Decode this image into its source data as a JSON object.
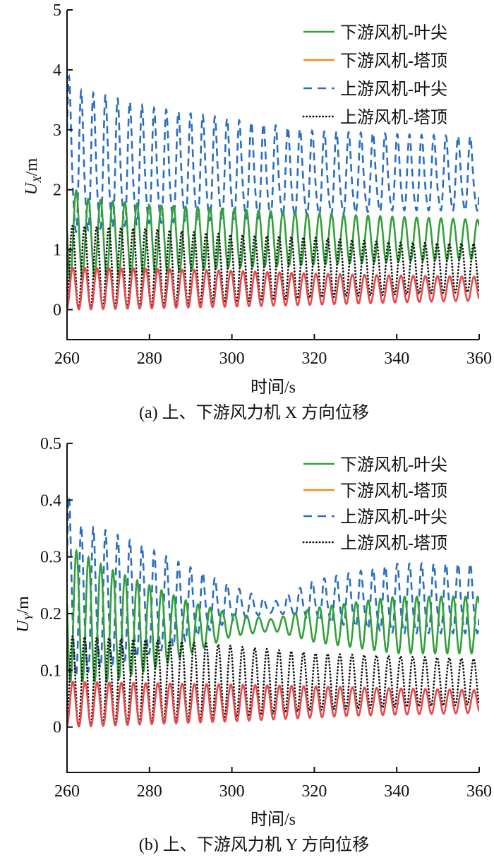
{
  "colors": {
    "green": "#33a03a",
    "red": "#e84a4c",
    "orange": "#f28a1e",
    "blue": "#2b6fbe",
    "black": "#111111"
  },
  "chart_data": [
    {
      "type": "line",
      "caption": "(a) 上、下游风力机 X 方向位移",
      "xlabel": "时间/s",
      "ylabel_main": "U",
      "ylabel_sub": "X",
      "ylabel_unit": "/m",
      "xlim": [
        260,
        360
      ],
      "ylim": [
        -0.5,
        5
      ],
      "xticks": [
        "260",
        "280",
        "300",
        "320",
        "340",
        "360"
      ],
      "yticks": [
        "0",
        "1",
        "2",
        "3",
        "4",
        "5"
      ],
      "legend_position": "top-right",
      "series": [
        {
          "name": "下游风机-叶尖",
          "style": "solid",
          "color": "green",
          "period": 2.95,
          "phase": 3.1,
          "envelope": [
            [
              260,
              0.5,
              2.1
            ],
            [
              265,
              0.55,
              1.85
            ],
            [
              280,
              0.6,
              1.75
            ],
            [
              300,
              0.7,
              1.68
            ],
            [
              320,
              0.75,
              1.6
            ],
            [
              340,
              0.8,
              1.55
            ],
            [
              360,
              0.85,
              1.5
            ]
          ]
        },
        {
          "name": "下游风机-塔顶",
          "style": "solid",
          "color": "red",
          "legend_color": "orange",
          "period": 2.95,
          "phase": -1.4,
          "envelope": [
            [
              260,
              0.0,
              0.7
            ],
            [
              280,
              0.02,
              0.68
            ],
            [
              300,
              0.05,
              0.65
            ],
            [
              320,
              0.08,
              0.6
            ],
            [
              340,
              0.12,
              0.57
            ],
            [
              360,
              0.15,
              0.55
            ]
          ]
        },
        {
          "name": "上游风机-叶尖",
          "style": "dashed",
          "color": "blue",
          "period": 2.95,
          "phase": 0.4,
          "envelope": [
            [
              260,
              1.0,
              4.0
            ],
            [
              262,
              1.0,
              3.7
            ],
            [
              270,
              1.1,
              3.6
            ],
            [
              280,
              1.2,
              3.4
            ],
            [
              300,
              1.3,
              3.2
            ],
            [
              320,
              1.4,
              3.0
            ],
            [
              340,
              1.5,
              2.95
            ],
            [
              360,
              1.5,
              2.9
            ]
          ]
        },
        {
          "name": "上游风机-塔顶",
          "style": "dotted",
          "color": "black",
          "period": 2.95,
          "phase": -1.2,
          "envelope": [
            [
              260,
              0.0,
              1.4
            ],
            [
              280,
              0.05,
              1.35
            ],
            [
              300,
              0.12,
              1.25
            ],
            [
              320,
              0.2,
              1.2
            ],
            [
              340,
              0.25,
              1.12
            ],
            [
              360,
              0.3,
              1.1
            ]
          ]
        }
      ]
    },
    {
      "type": "line",
      "caption": "(b) 上、下游风力机 Y 方向位移",
      "xlabel": "时间/s",
      "ylabel_main": "U",
      "ylabel_sub": "Y",
      "ylabel_unit": "/m",
      "xlim": [
        260,
        360
      ],
      "ylim": [
        -0.08,
        0.5
      ],
      "xticks": [
        "260",
        "280",
        "300",
        "320",
        "340",
        "360"
      ],
      "yticks": [
        "0",
        "0.1",
        "0.2",
        "0.3",
        "0.4",
        "0.5"
      ],
      "legend_position": "top-right",
      "series": [
        {
          "name": "下游风机-叶尖",
          "style": "solid",
          "color": "green",
          "period": 2.95,
          "phase": 3.0,
          "envelope": [
            [
              260,
              0.08,
              0.32
            ],
            [
              270,
              0.08,
              0.28
            ],
            [
              280,
              0.1,
              0.25
            ],
            [
              290,
              0.13,
              0.22
            ],
            [
              300,
              0.16,
              0.2
            ],
            [
              310,
              0.17,
              0.19
            ],
            [
              320,
              0.15,
              0.21
            ],
            [
              340,
              0.13,
              0.23
            ],
            [
              360,
              0.13,
              0.23
            ]
          ]
        },
        {
          "name": "下游风机-塔顶",
          "style": "solid",
          "color": "red",
          "legend_color": "orange",
          "period": 2.95,
          "phase": -1.4,
          "envelope": [
            [
              260,
              0.0,
              0.08
            ],
            [
              300,
              0.01,
              0.075
            ],
            [
              330,
              0.02,
              0.07
            ],
            [
              360,
              0.025,
              0.065
            ]
          ]
        },
        {
          "name": "上游风机-叶尖",
          "style": "dashed",
          "color": "blue",
          "period": 2.95,
          "phase": 0.4,
          "envelope": [
            [
              260,
              0.05,
              0.42
            ],
            [
              263,
              0.06,
              0.36
            ],
            [
              270,
              0.08,
              0.35
            ],
            [
              285,
              0.12,
              0.3
            ],
            [
              300,
              0.18,
              0.25
            ],
            [
              310,
              0.2,
              0.22
            ],
            [
              320,
              0.18,
              0.26
            ],
            [
              340,
              0.15,
              0.29
            ],
            [
              360,
              0.15,
              0.29
            ]
          ]
        },
        {
          "name": "上游风机-塔顶",
          "style": "dotted",
          "color": "black",
          "period": 2.95,
          "phase": -1.2,
          "envelope": [
            [
              260,
              0.0,
              0.16
            ],
            [
              290,
              0.01,
              0.15
            ],
            [
              320,
              0.03,
              0.13
            ],
            [
              360,
              0.04,
              0.12
            ]
          ]
        }
      ]
    }
  ]
}
